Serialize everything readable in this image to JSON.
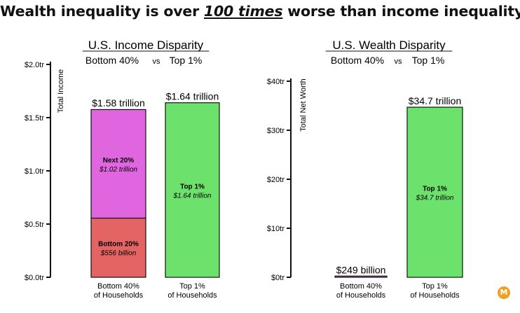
{
  "headline": {
    "pre": "Wealth inequality is over ",
    "emph": "100 times",
    "post": " worse than income inequality"
  },
  "logo_text": "M",
  "colors": {
    "purple": "#e066e0",
    "red": "#e46464",
    "green": "#6ce26c",
    "axis": "#111111"
  },
  "chart_data": [
    {
      "type": "bar",
      "stacked": true,
      "title": "U.S. Income Disparity",
      "subtitle": {
        "left": "Bottom 40%",
        "vs": "vs",
        "right": "Top 1%"
      },
      "ylabel": "Total Income",
      "ylim": [
        0,
        2.0
      ],
      "yticks": [
        0,
        0.5,
        1.0,
        1.5,
        2.0
      ],
      "yticklabels": [
        "$0.0tr",
        "$0.5tr",
        "$1.0tr",
        "$1.5tr",
        "$2.0tr"
      ],
      "grid": false,
      "categories": [
        {
          "line1": "Bottom 40%",
          "line2": "of Households"
        },
        {
          "line1": "Top 1%",
          "line2": "of Households"
        }
      ],
      "totals": [
        {
          "value": 1.58,
          "label": "$1.58 trillion"
        },
        {
          "value": 1.64,
          "label": "$1.64 trillion"
        }
      ],
      "segments": [
        [
          {
            "name": "Bottom 20%",
            "value": 0.556,
            "label": "$556 billion",
            "color": "#e46464"
          },
          {
            "name": "Next 20%",
            "value": 1.02,
            "label": "$1.02 trillion",
            "color": "#e066e0"
          }
        ],
        [
          {
            "name": "Top 1%",
            "value": 1.64,
            "label": "$1.64 trillion",
            "color": "#6ce26c"
          }
        ]
      ]
    },
    {
      "type": "bar",
      "stacked": true,
      "title": "U.S. Wealth Disparity",
      "subtitle": {
        "left": "Bottom 40%",
        "vs": "vs",
        "right": "Top 1%"
      },
      "ylabel": "Total Net Worth",
      "ylim": [
        0,
        40
      ],
      "yticks": [
        0,
        10,
        20,
        30,
        40
      ],
      "yticklabels": [
        "$0tr",
        "$10tr",
        "$20tr",
        "$30tr",
        "$40tr"
      ],
      "grid": false,
      "categories": [
        {
          "line1": "Bottom 40%",
          "line2": "of Households"
        },
        {
          "line1": "Top 1%",
          "line2": "of Households"
        }
      ],
      "totals": [
        {
          "value": 0.249,
          "label": "$249 billion"
        },
        {
          "value": 34.7,
          "label": "$34.7 trillion"
        }
      ],
      "segments": [
        [
          {
            "name": "",
            "value": 0.249,
            "label": "",
            "color": "#e066e0"
          }
        ],
        [
          {
            "name": "Top 1%",
            "value": 34.7,
            "label": "$34.7 trillion",
            "color": "#6ce26c"
          }
        ]
      ]
    }
  ]
}
